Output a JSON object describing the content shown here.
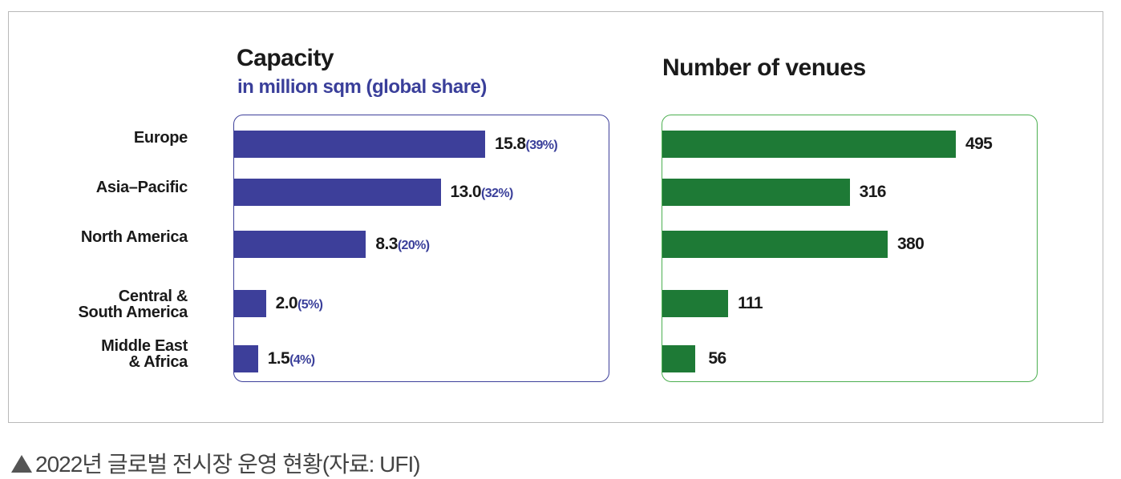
{
  "chart_data": [
    {
      "type": "bar",
      "orientation": "horizontal",
      "title": "Capacity",
      "subtitle": "in million sqm (global share)",
      "categories": [
        "Europe",
        "Asia–Pacific",
        "North America",
        "Central & South America",
        "Middle East & Africa"
      ],
      "values": [
        15.8,
        13.0,
        8.3,
        2.0,
        1.5
      ],
      "value_labels": [
        "15.8",
        "13.0",
        "8.3",
        "2.0",
        "1.5"
      ],
      "share_labels": [
        "(39%)",
        "(32%)",
        "(20%)",
        "(5%)",
        "(4%)"
      ],
      "color": "#3d3f9a"
    },
    {
      "type": "bar",
      "orientation": "horizontal",
      "title": "Number of venues",
      "categories": [
        "Europe",
        "Asia–Pacific",
        "North America",
        "Central & South America",
        "Middle East & Africa"
      ],
      "values": [
        495,
        316,
        380,
        111,
        56
      ],
      "value_labels": [
        "495",
        "316",
        "380",
        "111",
        "56"
      ],
      "color": "#1e7a36"
    }
  ],
  "row_labels": [
    [
      "Europe"
    ],
    [
      "Asia–Pacific"
    ],
    [
      "North America"
    ],
    [
      "Central &",
      "South America"
    ],
    [
      "Middle East",
      "& Africa"
    ]
  ],
  "caption": "2022년 글로벌 전시장 운영 현황(자료: UFI)"
}
